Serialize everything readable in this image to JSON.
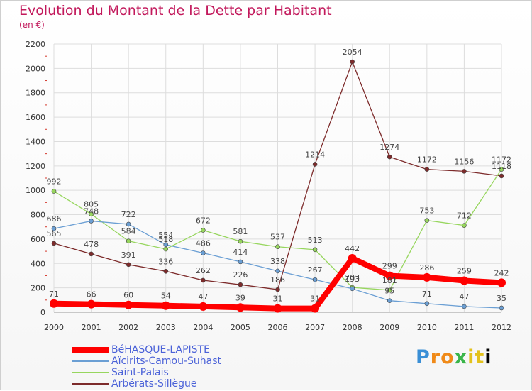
{
  "title": "Evolution du Montant de la Dette par Habitant",
  "subtitle": "(en €)",
  "logo_text": "Proxiti",
  "chart_data": {
    "type": "line",
    "x": [
      "2000",
      "2001",
      "2002",
      "2003",
      "2004",
      "2005",
      "2006",
      "2007",
      "2008",
      "2009",
      "2010",
      "2011",
      "2012"
    ],
    "ylim": [
      0,
      2200
    ],
    "yticks": [
      "0",
      "200",
      "400",
      "600",
      "800",
      "1000",
      "1200",
      "1400",
      "1600",
      "1800",
      "2000",
      "2200"
    ],
    "grid": true,
    "legend_position": "bottom-left",
    "series": [
      {
        "name": "BéHASQUE-LAPISTE",
        "color": "#ff0000",
        "values": [
          71,
          66,
          60,
          54,
          47,
          39,
          31,
          31,
          442,
          299,
          286,
          259,
          242
        ],
        "labels": [
          "71",
          "66",
          "60",
          "54",
          "47",
          "39",
          "31",
          "31",
          "442",
          "299",
          "286",
          "259",
          "242"
        ]
      },
      {
        "name": "Aïcirits-Camou-Suhast",
        "color": "#6b9fd4",
        "values": [
          686,
          748,
          722,
          554,
          486,
          414,
          338,
          267,
          193,
          95,
          71,
          47,
          35
        ],
        "labels": [
          "686",
          "748",
          "722",
          "554",
          "486",
          "414",
          "338",
          "267",
          "193",
          "95",
          "71",
          "47",
          "35"
        ]
      },
      {
        "name": "Saint-Palais",
        "color": "#97d65e",
        "values": [
          992,
          805,
          584,
          518,
          672,
          581,
          537,
          513,
          203,
          181,
          753,
          712,
          1172
        ],
        "labels": [
          "992",
          "805",
          "584",
          "518",
          "672",
          "581",
          "537",
          "513",
          "203",
          "181",
          "753",
          "712",
          "1172"
        ]
      },
      {
        "name": "Arbérats-Sillègue",
        "color": "#7d2b2b",
        "values": [
          565,
          478,
          391,
          336,
          262,
          226,
          186,
          1214,
          2054,
          1274,
          1172,
          1156,
          1118
        ],
        "labels": [
          "565",
          "478",
          "391",
          "336",
          "262",
          "226",
          "186",
          "1214",
          "2054",
          "1274",
          "1172",
          "1156",
          "1118"
        ]
      }
    ]
  }
}
